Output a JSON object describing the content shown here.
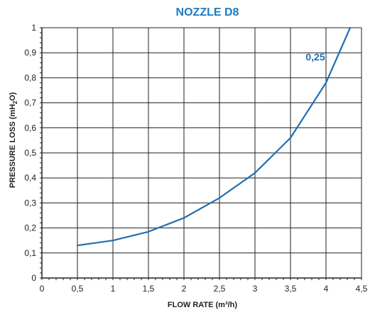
{
  "chart_data": {
    "type": "line",
    "title": "NOZZLE D8",
    "xlabel": "FLOW RATE (m³/h)",
    "ylabel": {
      "prefix": "PRESSURE LOSS (mH",
      "sub": "2",
      "suffix": "O)"
    },
    "xlim": [
      0,
      4.5
    ],
    "ylim": [
      0,
      1
    ],
    "x_ticks": [
      0,
      0.5,
      1,
      1.5,
      2,
      2.5,
      3,
      3.5,
      4,
      4.5
    ],
    "x_tick_labels": [
      "0",
      "0,5",
      "1",
      "1,5",
      "2",
      "2,5",
      "3",
      "3,5",
      "4",
      "4,5"
    ],
    "y_ticks": [
      0,
      0.1,
      0.2,
      0.3,
      0.4,
      0.5,
      0.6,
      0.7,
      0.8,
      0.9,
      1
    ],
    "y_tick_labels": [
      "0",
      "0,1",
      "0,2",
      "0,3",
      "0,4",
      "0,5",
      "0,6",
      "0,7",
      "0,8",
      "0,9",
      "1"
    ],
    "grid": true,
    "series": [
      {
        "x": [
          0.5,
          1,
          1.5,
          2,
          2.5,
          3,
          3.5,
          4,
          4.34
        ],
        "y": [
          0.13,
          0.15,
          0.185,
          0.24,
          0.32,
          0.42,
          0.56,
          0.78,
          1.0
        ]
      }
    ],
    "annotations": [
      {
        "text": "0,25",
        "x": 3.85,
        "y": 0.87
      }
    ],
    "colors": {
      "title": "#1f7ac0",
      "line": "#1f6fb5",
      "annotation": "#1f6fb5",
      "grid": "#222222"
    }
  }
}
